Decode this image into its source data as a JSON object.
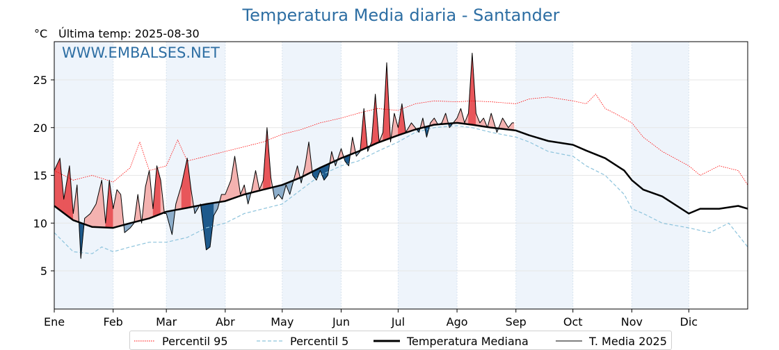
{
  "title": "Temperatura Media diaria - Santander",
  "unit_label": "°C",
  "last_temp_label": "Última temp: 2025-08-30",
  "watermark": "WWW.EMBALSES.NET",
  "colors": {
    "title": "#2d6ea3",
    "p95": "#ff0000",
    "p5": "#8cc3dc",
    "median": "#000000",
    "current": "#000000",
    "above_fill": "#f4b2b0",
    "above_fill_strong": "#e8565a",
    "below_fill": "#8daecb",
    "below_fill_strong": "#1e5a8c",
    "month_band": "#eef4fb"
  },
  "legend": [
    {
      "key": "p95",
      "label": "Percentil 95"
    },
    {
      "key": "p5",
      "label": "Percentil 5"
    },
    {
      "key": "median",
      "label": "Temperatura Mediana"
    },
    {
      "key": "current",
      "label": "T. Media 2025"
    }
  ],
  "chart_data": {
    "type": "line",
    "title": "Temperatura Media diaria - Santander",
    "xlabel": "",
    "ylabel": "°C",
    "xlim": [
      0,
      365
    ],
    "ylim": [
      1,
      29
    ],
    "y_ticks": [
      5,
      10,
      15,
      20,
      25
    ],
    "x_tick_labels": [
      "Ene",
      "Feb",
      "Mar",
      "Abr",
      "May",
      "Jun",
      "Jul",
      "Ago",
      "Sep",
      "Oct",
      "Nov",
      "Dic"
    ],
    "x_tick_days": [
      0,
      31,
      59,
      90,
      120,
      151,
      181,
      212,
      243,
      273,
      304,
      334
    ],
    "grid": true,
    "shaded_month_bands": [
      [
        0,
        31
      ],
      [
        59,
        90
      ],
      [
        120,
        151
      ],
      [
        181,
        212
      ],
      [
        243,
        273
      ],
      [
        304,
        334
      ]
    ],
    "series": [
      {
        "name": "Percentil 95",
        "key": "p95",
        "style": "dotted",
        "x": [
          0,
          10,
          20,
          31,
          40,
          45,
          50,
          59,
          65,
          70,
          80,
          90,
          100,
          110,
          120,
          130,
          140,
          151,
          160,
          170,
          181,
          190,
          200,
          212,
          220,
          230,
          243,
          250,
          260,
          273,
          280,
          285,
          290,
          295,
          304,
          310,
          320,
          334,
          340,
          350,
          360,
          365
        ],
        "y": [
          15.5,
          14.5,
          15,
          14.3,
          15.8,
          18.5,
          15.5,
          16,
          18.7,
          16.5,
          17,
          17.5,
          18,
          18.5,
          19.3,
          19.8,
          20.5,
          21,
          21.5,
          22,
          21.8,
          22.5,
          22.8,
          22.7,
          22.8,
          22.7,
          22.5,
          23,
          23.2,
          22.8,
          22.5,
          23.5,
          22,
          21.5,
          20.5,
          19,
          17.5,
          16,
          15,
          16,
          15.5,
          14
        ]
      },
      {
        "name": "Percentil 5",
        "key": "p5",
        "style": "dashed",
        "x": [
          0,
          10,
          20,
          25,
          31,
          40,
          50,
          59,
          70,
          80,
          90,
          100,
          110,
          120,
          130,
          140,
          151,
          160,
          170,
          181,
          190,
          200,
          212,
          220,
          230,
          243,
          250,
          260,
          273,
          280,
          290,
          300,
          304,
          310,
          320,
          334,
          345,
          355,
          365
        ],
        "y": [
          9,
          7,
          6.8,
          7.5,
          7,
          7.5,
          8,
          8,
          8.5,
          9.5,
          10,
          11,
          11.5,
          12,
          13.5,
          15,
          16,
          16.5,
          17.5,
          18.5,
          19.5,
          20,
          20.2,
          20,
          19.5,
          19,
          18.5,
          17.5,
          17,
          16,
          15,
          13,
          11.5,
          11,
          10,
          9.5,
          9,
          10,
          7.5
        ]
      },
      {
        "name": "Temperatura Mediana",
        "key": "median",
        "style": "thick",
        "x": [
          0,
          10,
          20,
          31,
          40,
          50,
          59,
          70,
          80,
          90,
          100,
          110,
          120,
          130,
          140,
          151,
          160,
          170,
          181,
          190,
          200,
          212,
          220,
          230,
          243,
          250,
          260,
          273,
          280,
          290,
          300,
          304,
          310,
          320,
          334,
          340,
          350,
          360,
          365
        ],
        "y": [
          11.8,
          10.3,
          9.6,
          9.5,
          10,
          10.5,
          11.2,
          11.6,
          12,
          12.3,
          13,
          13.5,
          14,
          14.8,
          15.8,
          16.8,
          17.5,
          18.4,
          19.2,
          19.8,
          20.3,
          20.5,
          20.3,
          20,
          19.7,
          19.2,
          18.6,
          18.2,
          17.6,
          16.8,
          15.5,
          14.5,
          13.5,
          12.8,
          11,
          11.5,
          11.5,
          11.8,
          11.5
        ]
      },
      {
        "name": "T. Media 2025",
        "key": "current",
        "style": "thin",
        "x": [
          0,
          3,
          5,
          8,
          10,
          12,
          14,
          16,
          19,
          22,
          25,
          27,
          29,
          31,
          33,
          35,
          37,
          40,
          42,
          44,
          46,
          48,
          50,
          52,
          54,
          56,
          58,
          59,
          62,
          64,
          67,
          70,
          72,
          74,
          77,
          80,
          82,
          84,
          86,
          88,
          90,
          93,
          95,
          98,
          100,
          102,
          104,
          106,
          108,
          110,
          112,
          114,
          116,
          118,
          120,
          122,
          124,
          126,
          128,
          130,
          132,
          134,
          136,
          138,
          140,
          142,
          144,
          146,
          148,
          151,
          153,
          155,
          157,
          159,
          161,
          163,
          165,
          167,
          169,
          171,
          173,
          175,
          177,
          179,
          181,
          183,
          185,
          188,
          190,
          192,
          194,
          196,
          198,
          200,
          202,
          204,
          206,
          208,
          210,
          212,
          214,
          216,
          218,
          220,
          222,
          224,
          226,
          228,
          230,
          233,
          236,
          239,
          241,
          242
        ],
        "y": [
          15.5,
          16.8,
          12.5,
          16,
          11,
          14,
          6.3,
          10.5,
          11,
          12,
          14.5,
          10,
          14.5,
          11.5,
          13.5,
          13,
          9,
          9.5,
          10,
          13,
          10,
          13.8,
          15.5,
          11.5,
          16,
          14.5,
          11,
          11,
          8.8,
          12,
          14,
          16.8,
          13.5,
          11,
          12,
          7.2,
          7.5,
          10.8,
          11.5,
          13,
          13,
          14.5,
          17,
          13,
          14,
          12,
          13.5,
          15.5,
          13.5,
          14.5,
          20,
          14.8,
          12.5,
          13,
          12.5,
          14,
          13,
          14.5,
          16,
          14.2,
          16,
          18.5,
          15,
          14.5,
          15.5,
          14.5,
          15,
          17.5,
          16,
          17.8,
          16.5,
          16,
          19,
          17,
          17.5,
          22,
          17.5,
          18.5,
          23.5,
          18.5,
          19.5,
          26.8,
          18.5,
          21.5,
          20,
          22.5,
          19.5,
          20.5,
          20,
          19.5,
          21,
          19,
          20.5,
          21,
          20.3,
          20.5,
          21.5,
          20,
          20.5,
          21,
          22,
          20.5,
          21.5,
          27.8,
          21.5,
          20.5,
          21,
          20,
          21.5,
          19.5,
          21,
          20,
          20.5,
          20.5
        ]
      }
    ]
  }
}
